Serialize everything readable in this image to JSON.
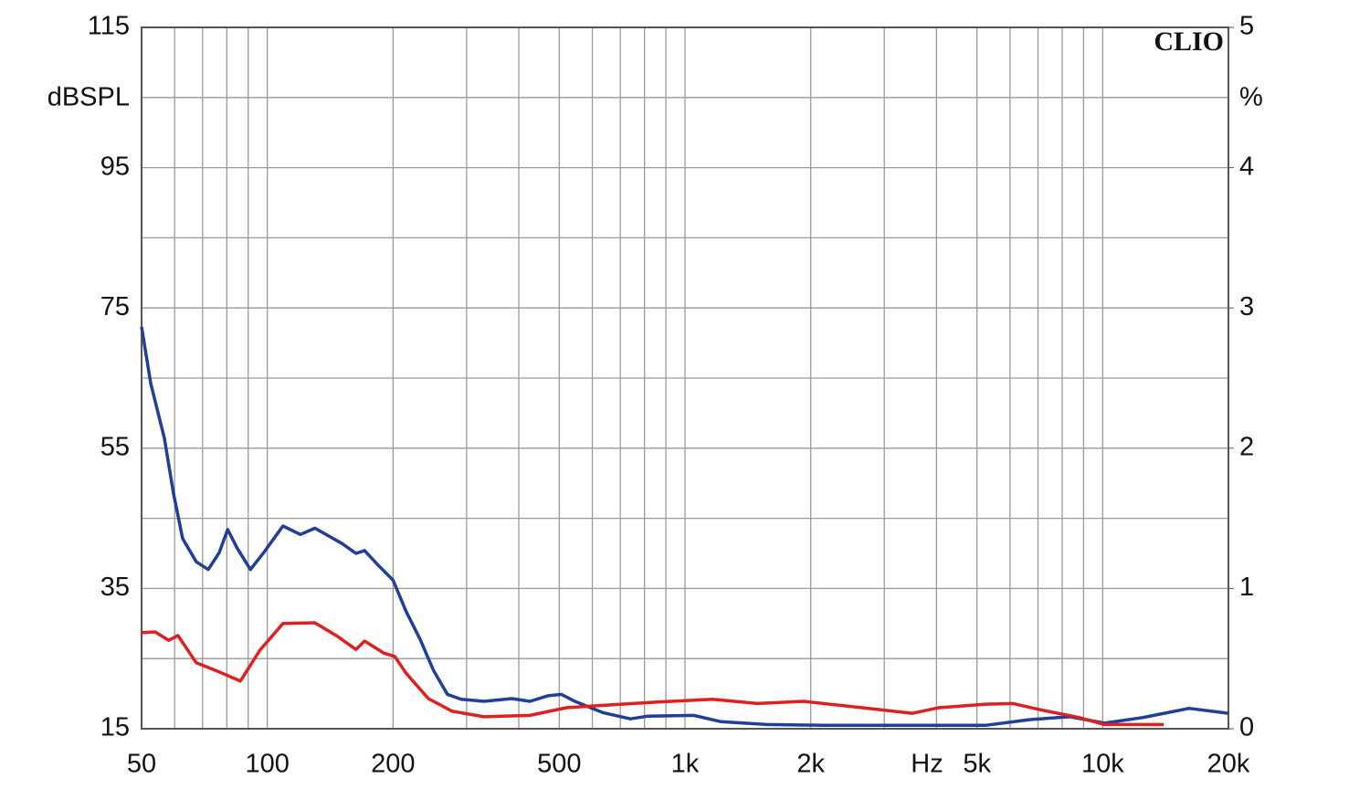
{
  "chart_data": {
    "type": "line",
    "brand": "CLIO",
    "ylabel": "dBSPL",
    "y2label": "%",
    "xlabel": "Hz",
    "log_x": true,
    "grid": true,
    "xlim": [
      50,
      20000
    ],
    "xticks": [
      50,
      100,
      200,
      500,
      {
        "value": 1000,
        "label": "1k"
      },
      {
        "value": 2000,
        "label": "2k"
      },
      {
        "value": 5000,
        "label": "5k"
      },
      {
        "value": 10000,
        "label": "10k"
      },
      {
        "value": 20000,
        "label": "20k"
      }
    ],
    "xminor": [
      60,
      70,
      80,
      90,
      300,
      400,
      600,
      700,
      800,
      900,
      3000,
      4000,
      6000,
      7000,
      8000,
      9000
    ],
    "ylim": [
      15,
      115
    ],
    "yticks": [
      15,
      35,
      55,
      75,
      95,
      115
    ],
    "yminor": [
      25,
      45,
      65,
      85,
      105
    ],
    "y2lim": [
      0,
      5
    ],
    "y2ticks": [
      0,
      1,
      2,
      3,
      4,
      5
    ],
    "series": [
      {
        "color": "#1f3f99",
        "x": [
          50,
          52.6,
          56.7,
          59.6,
          62.7,
          67.6,
          72.2,
          76.7,
          80.4,
          84.6,
          91.1,
          98,
          109,
          120,
          130,
          151,
          163,
          171,
          185,
          200,
          215,
          232,
          250,
          270,
          291,
          330,
          385,
          425,
          470,
          506,
          545,
          635,
          740,
          815,
          1050,
          1220,
          1570,
          2125,
          3500,
          5260,
          6700,
          8350,
          10100,
          12500,
          16100,
          20000
        ],
        "values": [
          72.3,
          64.2,
          56.4,
          48.6,
          42.1,
          38.8,
          37.7,
          40.1,
          43.4,
          40.8,
          37.7,
          40.1,
          43.9,
          42.7,
          43.6,
          41.4,
          40.0,
          40.4,
          38.2,
          36.2,
          31.7,
          27.8,
          23.3,
          19.9,
          19.2,
          18.9,
          19.3,
          18.9,
          19.7,
          19.9,
          18.9,
          17.3,
          16.4,
          16.8,
          16.9,
          16.0,
          15.6,
          15.5,
          15.5,
          15.5,
          16.3,
          16.7,
          15.8,
          16.6,
          17.9,
          17.2
        ]
      },
      {
        "color": "#e02020",
        "x": [
          50,
          53.9,
          58.1,
          61.1,
          67.6,
          76.7,
          86.2,
          96,
          109,
          130,
          147,
          163,
          171,
          190,
          202,
          215,
          243,
          277,
          330,
          425,
          520,
          705,
          860,
          1165,
          1490,
          1920,
          2750,
          3500,
          4050,
          5260,
          6100,
          7100,
          8770,
          10100,
          14000
        ],
        "values": [
          28.7,
          28.8,
          27.6,
          28.3,
          24.4,
          23.1,
          21.8,
          26.2,
          30.0,
          30.1,
          28.2,
          26.3,
          27.5,
          25.8,
          25.3,
          22.9,
          19.3,
          17.5,
          16.7,
          16.9,
          18.0,
          18.5,
          18.8,
          19.2,
          18.6,
          18.9,
          17.9,
          17.2,
          18.0,
          18.5,
          18.6,
          17.7,
          16.6,
          15.6,
          15.6
        ]
      }
    ]
  }
}
